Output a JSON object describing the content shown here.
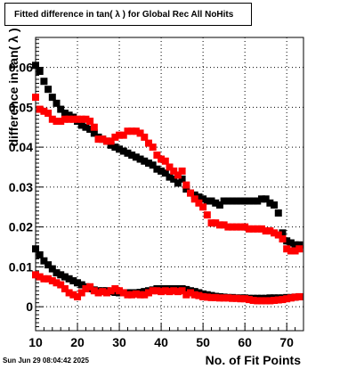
{
  "title": "Fitted difference in tan( λ ) for Global Rec All NoHits",
  "timestamp": "Sun Jun 29 08:04:42 2025",
  "chart_data": {
    "type": "scatter",
    "xlabel": "No. of Fit Points",
    "ylabel": "difference in tan( λ )",
    "xlim": [
      10,
      74
    ],
    "ylim": [
      -0.006,
      0.0675
    ],
    "grid": true,
    "x_ticks": [
      10,
      20,
      30,
      40,
      50,
      60,
      70
    ],
    "x_tick_labels": [
      "10",
      "20",
      "30",
      "40",
      "50",
      "60",
      "70"
    ],
    "y_ticks": [
      0,
      0.01,
      0.02,
      0.03,
      0.04,
      0.05,
      0.06
    ],
    "y_tick_labels": [
      "0",
      "0.01",
      "0.02",
      "0.03",
      "0.04",
      "0.05",
      "0.06"
    ],
    "colors": {
      "black": "#000000",
      "red": "#ff0000"
    },
    "series": [
      {
        "color": "black",
        "x": [
          10,
          11,
          12,
          13,
          14,
          15,
          16,
          17,
          18,
          19,
          20,
          21,
          22,
          23,
          24,
          25,
          26,
          27,
          28,
          29,
          30,
          31,
          32,
          33,
          34,
          35,
          36,
          37,
          38,
          39,
          40,
          41,
          42,
          43,
          44,
          45,
          46,
          47,
          48,
          49,
          50,
          51,
          52,
          53,
          54,
          55,
          56,
          57,
          58,
          59,
          60,
          61,
          62,
          63,
          64,
          65,
          66,
          67,
          68,
          69,
          70,
          71,
          72,
          73
        ],
        "y": [
          0.0605,
          0.059,
          0.0565,
          0.0545,
          0.0525,
          0.051,
          0.0495,
          0.0485,
          0.048,
          0.0475,
          0.0465,
          0.0455,
          0.045,
          0.0445,
          0.0435,
          0.0425,
          0.042,
          0.0415,
          0.0405,
          0.04,
          0.0395,
          0.039,
          0.0385,
          0.038,
          0.0375,
          0.037,
          0.0365,
          0.036,
          0.0355,
          0.0345,
          0.034,
          0.0335,
          0.0325,
          0.032,
          0.031,
          0.032,
          0.0295,
          0.0285,
          0.028,
          0.0275,
          0.027,
          0.0265,
          0.0265,
          0.026,
          0.0255,
          0.0265,
          0.0265,
          0.0265,
          0.0265,
          0.0265,
          0.0265,
          0.0265,
          0.0265,
          0.0265,
          0.027,
          0.027,
          0.026,
          0.0255,
          0.0235,
          0.0185,
          0.0165,
          0.016,
          0.0155,
          0.0155
        ]
      },
      {
        "color": "red",
        "x": [
          10,
          11,
          12,
          13,
          14,
          15,
          16,
          17,
          18,
          19,
          20,
          21,
          22,
          23,
          24,
          25,
          26,
          27,
          28,
          29,
          30,
          31,
          32,
          33,
          34,
          35,
          36,
          37,
          38,
          39,
          40,
          41,
          42,
          43,
          44,
          45,
          46,
          47,
          48,
          49,
          50,
          51,
          52,
          53,
          54,
          55,
          56,
          57,
          58,
          59,
          60,
          61,
          62,
          63,
          64,
          65,
          66,
          67,
          68,
          69,
          70,
          71,
          72,
          73
        ],
        "y": [
          0.0525,
          0.0495,
          0.049,
          0.0485,
          0.047,
          0.0465,
          0.0465,
          0.047,
          0.047,
          0.047,
          0.047,
          0.047,
          0.047,
          0.0465,
          0.045,
          0.042,
          0.042,
          0.0415,
          0.0415,
          0.0425,
          0.043,
          0.043,
          0.044,
          0.044,
          0.044,
          0.0435,
          0.0425,
          0.041,
          0.04,
          0.038,
          0.037,
          0.0365,
          0.035,
          0.034,
          0.033,
          0.034,
          0.0305,
          0.0285,
          0.027,
          0.026,
          0.025,
          0.023,
          0.021,
          0.021,
          0.0205,
          0.0205,
          0.02,
          0.02,
          0.02,
          0.02,
          0.02,
          0.0195,
          0.0195,
          0.0195,
          0.0195,
          0.019,
          0.019,
          0.0185,
          0.018,
          0.017,
          0.0145,
          0.014,
          0.014,
          0.0145
        ]
      },
      {
        "color": "black",
        "x": [
          10,
          11,
          12,
          13,
          14,
          15,
          16,
          17,
          18,
          19,
          20,
          21,
          22,
          23,
          24,
          25,
          26,
          27,
          28,
          29,
          30,
          31,
          32,
          33,
          34,
          35,
          36,
          37,
          38,
          39,
          40,
          41,
          42,
          43,
          44,
          45,
          46,
          47,
          48,
          49,
          50,
          51,
          52,
          53,
          54,
          55,
          56,
          57,
          58,
          59,
          60,
          61,
          62,
          63,
          64,
          65,
          66,
          67,
          68,
          69,
          70,
          71,
          72,
          73
        ],
        "y": [
          0.0145,
          0.013,
          0.0115,
          0.0105,
          0.0095,
          0.0085,
          0.008,
          0.0075,
          0.007,
          0.0065,
          0.006,
          0.0055,
          0.005,
          0.0045,
          0.0042,
          0.004,
          0.004,
          0.004,
          0.0038,
          0.0036,
          0.0035,
          0.0035,
          0.0035,
          0.0035,
          0.0035,
          0.0036,
          0.0038,
          0.004,
          0.0042,
          0.0045,
          0.0045,
          0.0045,
          0.0045,
          0.0045,
          0.0045,
          0.0045,
          0.0043,
          0.004,
          0.0038,
          0.0035,
          0.0032,
          0.003,
          0.0028,
          0.0026,
          0.0025,
          0.0024,
          0.0023,
          0.0023,
          0.0022,
          0.0022,
          0.0022,
          0.0021,
          0.0021,
          0.0021,
          0.0021,
          0.0021,
          0.0022,
          0.0022,
          0.0022,
          0.0022,
          0.0023,
          0.0023,
          0.0024,
          0.0025
        ]
      },
      {
        "color": "red",
        "x": [
          10,
          11,
          12,
          13,
          14,
          15,
          16,
          17,
          18,
          19,
          20,
          21,
          22,
          23,
          24,
          25,
          26,
          27,
          28,
          29,
          30,
          31,
          32,
          33,
          34,
          35,
          36,
          37,
          38,
          39,
          40,
          41,
          42,
          43,
          44,
          45,
          46,
          47,
          48,
          49,
          50,
          51,
          52,
          53,
          54,
          55,
          56,
          57,
          58,
          59,
          60,
          61,
          62,
          63,
          64,
          65,
          66,
          67,
          68,
          69,
          70,
          71,
          72,
          73
        ],
        "y": [
          0.008,
          0.0075,
          0.007,
          0.007,
          0.0065,
          0.006,
          0.0055,
          0.0045,
          0.0035,
          0.003,
          0.0025,
          0.0035,
          0.0045,
          0.005,
          0.004,
          0.0035,
          0.0038,
          0.0035,
          0.004,
          0.0045,
          0.004,
          0.0035,
          0.003,
          0.003,
          0.0032,
          0.003,
          0.003,
          0.0035,
          0.004,
          0.004,
          0.0038,
          0.004,
          0.0038,
          0.004,
          0.0038,
          0.004,
          0.003,
          0.0035,
          0.003,
          0.0028,
          0.0025,
          0.0024,
          0.0023,
          0.0023,
          0.0022,
          0.0022,
          0.0022,
          0.0021,
          0.0021,
          0.002,
          0.002,
          0.0018,
          0.0016,
          0.0015,
          0.0015,
          0.0015,
          0.0015,
          0.0016,
          0.0017,
          0.0018,
          0.002,
          0.0022,
          0.0024,
          0.0025
        ]
      }
    ]
  }
}
